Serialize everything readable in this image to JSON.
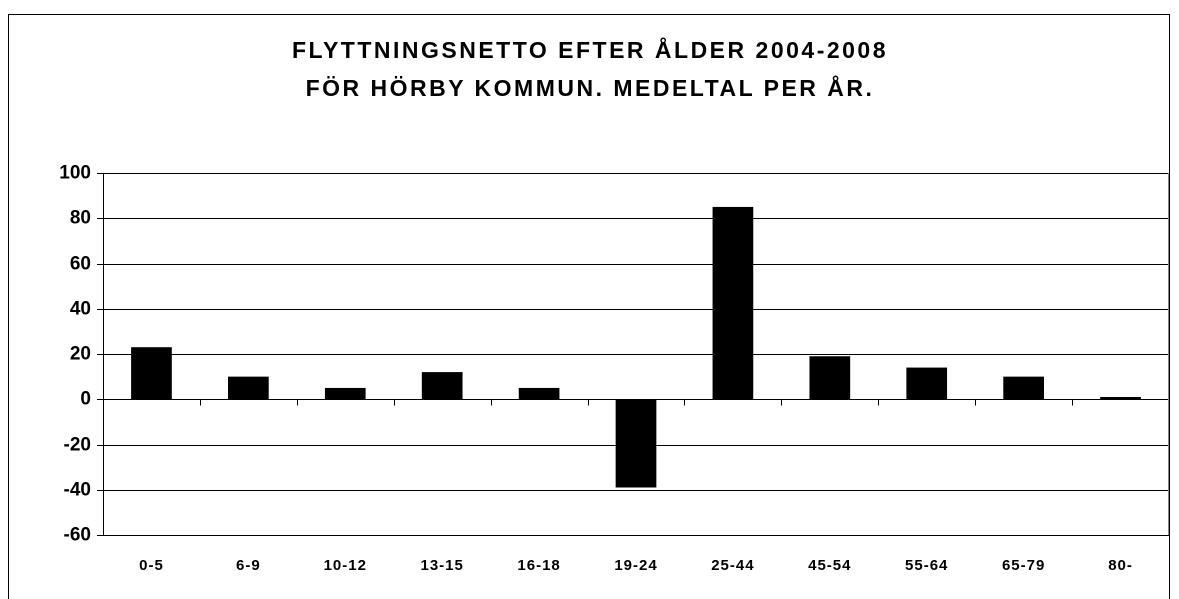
{
  "chart_data": {
    "type": "bar",
    "title": [
      "FLYTTNINGSNETTO EFTER ÅLDER 2004-2008",
      "FÖR HÖRBY KOMMUN. MEDELTAL PER ÅR."
    ],
    "categories": [
      "0-5",
      "6-9",
      "10-12",
      "13-15",
      "16-18",
      "19-24",
      "25-44",
      "45-54",
      "55-64",
      "65-79",
      "80-"
    ],
    "values": [
      23,
      10,
      5,
      12,
      5,
      -39,
      85,
      19,
      14,
      10,
      1
    ],
    "color": "#000000",
    "ylim": [
      -60,
      100
    ],
    "yticks": [
      -60,
      -40,
      -20,
      0,
      20,
      40,
      60,
      80,
      100
    ],
    "grid": true
  }
}
